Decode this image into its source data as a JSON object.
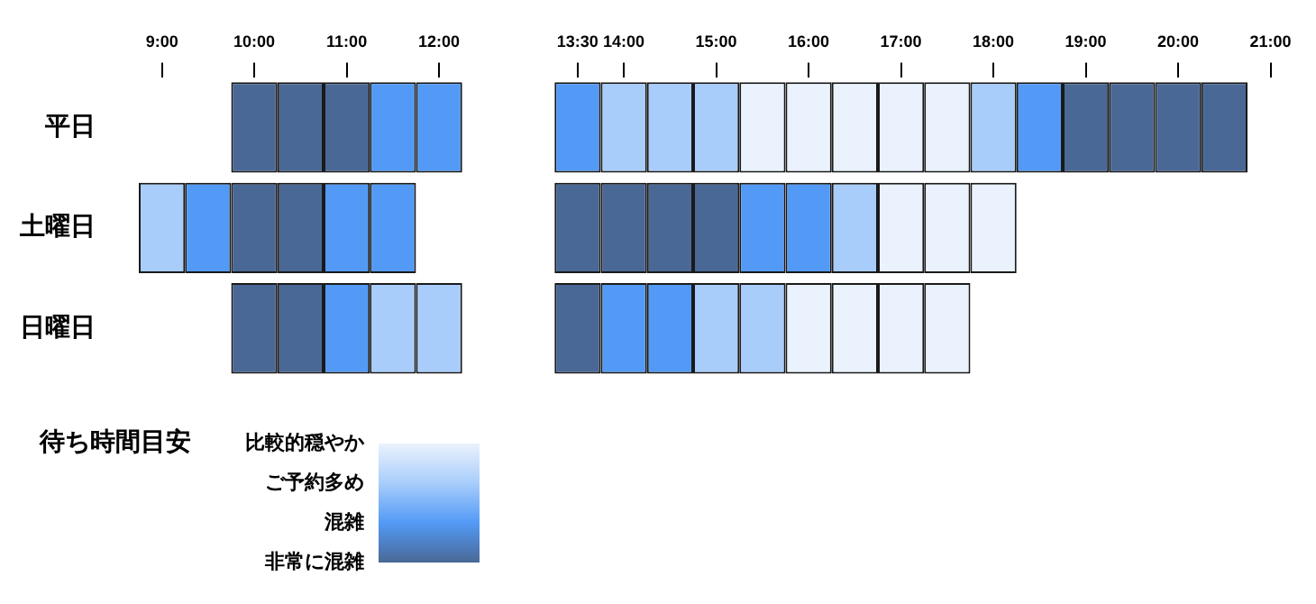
{
  "chart_data": {
    "type": "heatmap",
    "categories": [
      "9:00",
      null,
      "10:00",
      null,
      "11:00",
      null,
      "12:00",
      null,
      null,
      "13:30",
      "14:00",
      null,
      "15:00",
      null,
      "16:00",
      null,
      "17:00",
      null,
      "18:00",
      null,
      "19:00",
      null,
      "20:00",
      null,
      "21:00"
    ],
    "y_categories": [
      "平日",
      "土曜日",
      "日曜日"
    ],
    "cells": [
      [
        null,
        null,
        0,
        0,
        0,
        1,
        1,
        null,
        null,
        1,
        2,
        2,
        2,
        3,
        3,
        3,
        3,
        3,
        2,
        1,
        0,
        0,
        0,
        0,
        null
      ],
      [
        2,
        1,
        0,
        0,
        1,
        1,
        null,
        null,
        null,
        0,
        0,
        0,
        0,
        1,
        1,
        2,
        3,
        3,
        3,
        null,
        null,
        null,
        null,
        null,
        null
      ],
      [
        null,
        null,
        0,
        0,
        1,
        2,
        2,
        null,
        null,
        0,
        1,
        1,
        2,
        2,
        3,
        3,
        3,
        3,
        null,
        null,
        null,
        null,
        null,
        null,
        null
      ]
    ],
    "clabel": "待ち時間目安",
    "clim": [
      0,
      3
    ],
    "cticks": [
      {
        "value": 3,
        "label": "比較的穏やか"
      },
      {
        "value": 2,
        "label": "ご予約多め"
      },
      {
        "value": 1,
        "label": "混雑"
      },
      {
        "value": 0,
        "label": "非常に混雑"
      }
    ]
  }
}
